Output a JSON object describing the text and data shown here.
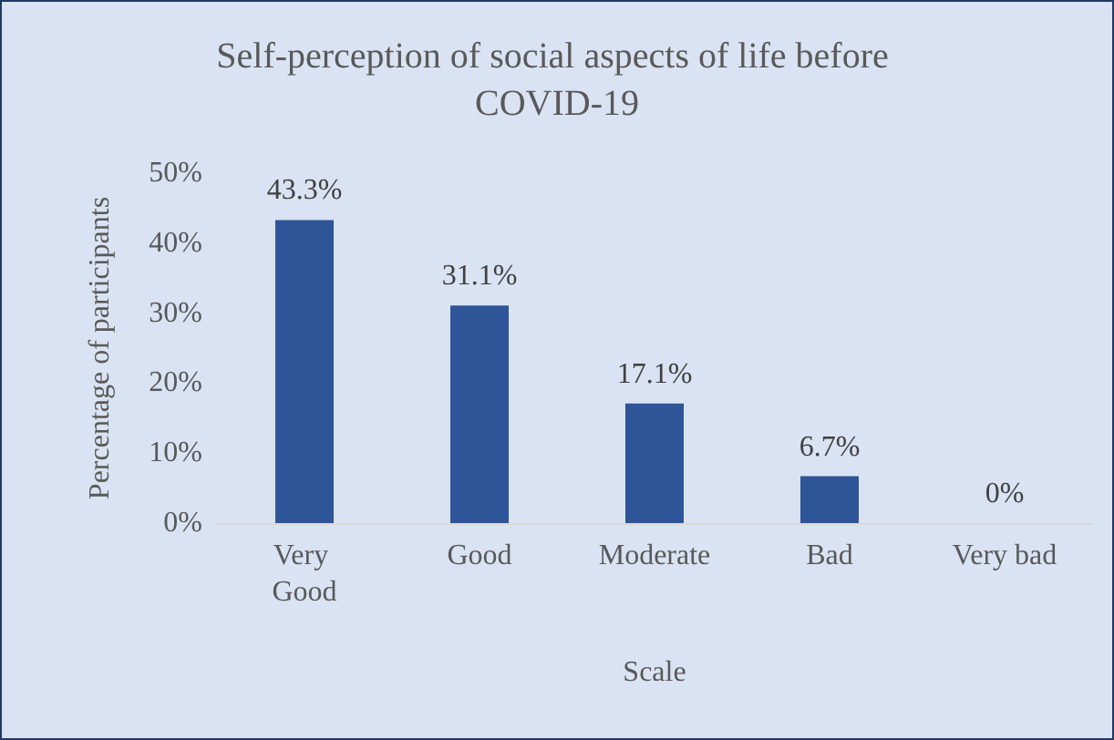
{
  "chart_data": {
    "type": "bar",
    "title": "Self-perception of social aspects of life before COVID-19",
    "xlabel": "Scale",
    "ylabel": "Percentage of participants",
    "categories": [
      "Very Good",
      "Good",
      "Moderate",
      "Bad",
      "Very bad"
    ],
    "values": [
      43.3,
      31.1,
      17.1,
      6.7,
      0
    ],
    "value_labels": [
      "43.3%",
      "31.1%",
      "17.1%",
      "6.7%",
      "0%"
    ],
    "color": "#2e5597",
    "ylim": [
      0,
      50
    ],
    "yticks": [
      {
        "value": 0,
        "label": "0%"
      },
      {
        "value": 10,
        "label": "10%"
      },
      {
        "value": 20,
        "label": "20%"
      },
      {
        "value": 30,
        "label": "30%"
      },
      {
        "value": 40,
        "label": "40%"
      },
      {
        "value": 50,
        "label": "50%"
      }
    ],
    "grid": false
  }
}
